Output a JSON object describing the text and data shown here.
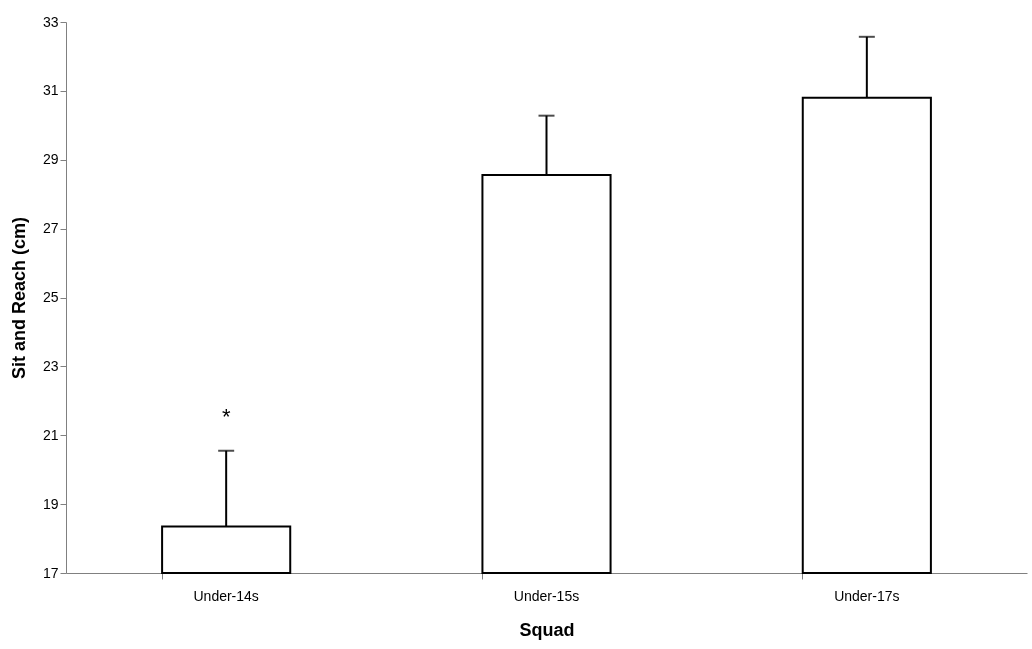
{
  "chart_data": {
    "type": "bar",
    "xlabel": "Squad",
    "ylabel": "Sit and Reach (cm)",
    "categories": [
      "Under-14s",
      "Under-15s",
      "Under-17s"
    ],
    "values": [
      18.35,
      28.56,
      30.8
    ],
    "errors": [
      [
        18.35,
        20.55
      ],
      [
        28.56,
        30.28
      ],
      [
        30.8,
        32.57
      ]
    ],
    "color": "#ffffff",
    "ylim": [
      17,
      33
    ],
    "yticks": [
      17,
      19,
      21,
      23,
      25,
      27,
      29,
      31,
      33
    ],
    "grid": false,
    "annotations": [
      "*"
    ]
  }
}
